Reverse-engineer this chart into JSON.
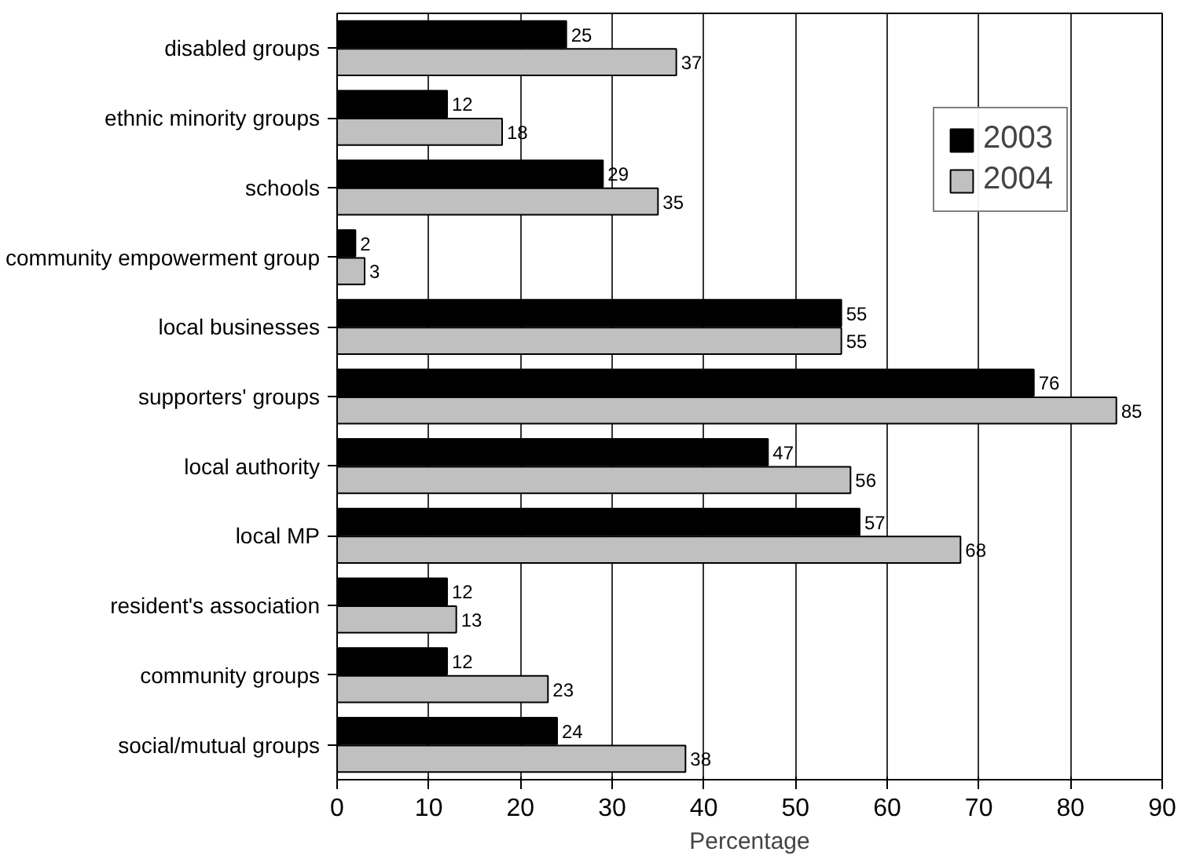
{
  "chart_data": {
    "type": "bar",
    "orientation": "horizontal",
    "xlabel": "Percentage",
    "categories": [
      "disabled groups",
      "ethnic minority groups",
      "schools",
      "community empowerment group",
      "local businesses",
      "supporters' groups",
      "local authority",
      "local MP",
      "resident's association",
      "community groups",
      "social/mutual groups"
    ],
    "series": [
      {
        "name": "2003",
        "color": "#000000",
        "values": [
          25,
          12,
          29,
          2,
          55,
          76,
          47,
          57,
          12,
          12,
          24
        ]
      },
      {
        "name": "2004",
        "color": "#c0c0c0",
        "values": [
          37,
          18,
          35,
          3,
          55,
          85,
          56,
          68,
          13,
          23,
          38
        ]
      }
    ],
    "xlim": [
      0,
      90
    ],
    "xticks": [
      0,
      10,
      20,
      30,
      40,
      50,
      60,
      70,
      80,
      90
    ],
    "grid": "x",
    "legend": "top right",
    "data_labels": true
  }
}
